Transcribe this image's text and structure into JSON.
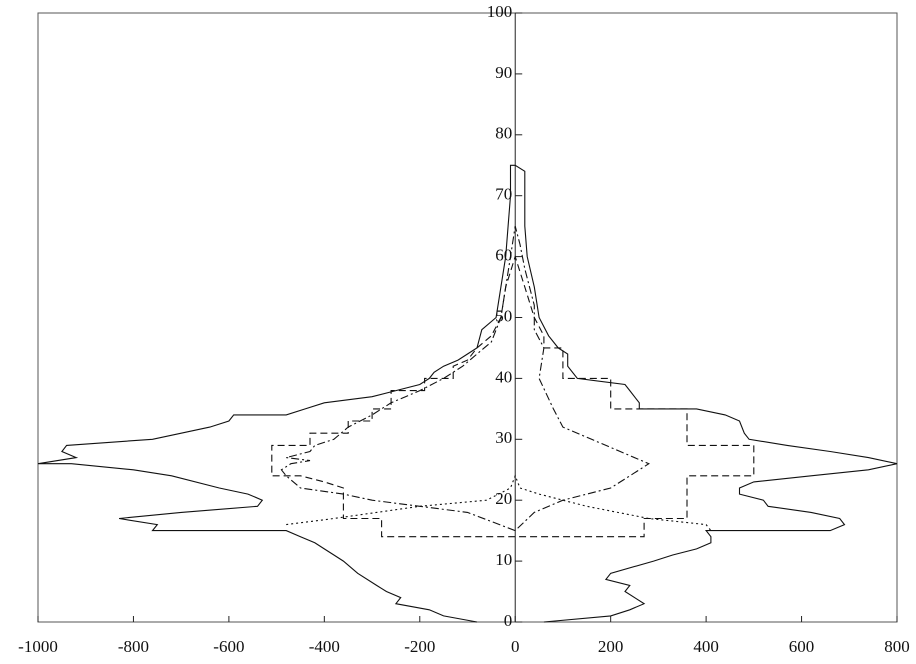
{
  "chart_data": {
    "type": "line",
    "xlim": [
      -1000,
      800
    ],
    "ylim": [
      0,
      100
    ],
    "xticks": [
      -1000,
      -800,
      -600,
      -400,
      -200,
      0,
      200,
      400,
      600,
      800
    ],
    "yticks": [
      0,
      10,
      20,
      30,
      40,
      50,
      60,
      70,
      80,
      90,
      100
    ],
    "series": [
      {
        "color": "#111111",
        "dash": "solid",
        "x": [
          -80,
          -150,
          -180,
          -250,
          -240,
          -270,
          -290,
          -330,
          -360,
          -380,
          -400,
          -420,
          -450,
          -480,
          -760,
          -750,
          -830,
          -700,
          -540,
          -530,
          -560,
          -620,
          -720,
          -800,
          -930,
          -1000,
          -920,
          -950,
          -940,
          -760,
          -700,
          -640,
          -600,
          -590,
          -480,
          -440,
          -400,
          -300,
          -250,
          -200,
          -180,
          -170,
          -150,
          -120,
          -100,
          -80,
          -70,
          -40,
          -30,
          -20,
          -15,
          -10,
          -10,
          0,
          20,
          20,
          25,
          40,
          50,
          70,
          90,
          110,
          110,
          130,
          230,
          240,
          250,
          260,
          260,
          380,
          440,
          470,
          480,
          490,
          570,
          660,
          740,
          800,
          740,
          620,
          500,
          470,
          470,
          520,
          530,
          620,
          680,
          690,
          660,
          400,
          410,
          410,
          380,
          330,
          290,
          200,
          190,
          240,
          230,
          270,
          240,
          200,
          60
        ],
        "values": [
          0,
          1,
          2,
          3,
          4,
          5,
          6,
          8,
          10,
          11,
          12,
          13,
          14,
          15,
          15,
          16,
          17,
          18,
          19,
          20,
          21,
          22,
          24,
          25,
          26,
          26,
          27,
          28,
          29,
          30,
          31,
          32,
          33,
          34,
          34,
          35,
          36,
          37,
          38,
          39,
          40,
          41,
          42,
          43,
          44,
          45,
          48,
          50,
          55,
          60,
          65,
          70,
          75,
          75,
          74,
          65,
          60,
          55,
          50,
          47,
          45,
          44,
          42,
          40,
          39,
          38,
          37,
          36,
          35,
          35,
          34,
          33,
          31,
          30,
          29,
          28,
          27,
          26,
          25,
          24,
          23,
          22,
          21,
          20,
          19,
          18,
          17,
          16,
          15,
          15,
          14,
          13,
          12,
          11,
          10,
          8,
          7,
          6,
          5,
          3,
          2,
          1,
          0
        ]
      },
      {
        "color": "#111111",
        "dash": "dashed",
        "x": [
          0,
          -280,
          -280,
          -360,
          -360,
          -360,
          -400,
          -450,
          -510,
          -510,
          -430,
          -430,
          -350,
          -350,
          -300,
          -300,
          -260,
          -260,
          -190,
          -190,
          -130,
          -130,
          -100,
          -80,
          -50,
          -30,
          -20,
          0,
          20,
          40,
          60,
          60,
          100,
          100,
          200,
          200,
          360,
          360,
          500,
          500,
          360,
          360,
          270,
          270,
          0
        ],
        "values": [
          14,
          14,
          17,
          17,
          21,
          22,
          23,
          24,
          24,
          29,
          29,
          31,
          31,
          33,
          33,
          35,
          35,
          38,
          38,
          40,
          40,
          42,
          43,
          45,
          47,
          50,
          55,
          60,
          55,
          50,
          47,
          45,
          45,
          40,
          40,
          35,
          35,
          29,
          29,
          24,
          24,
          17,
          17,
          14,
          14
        ]
      },
      {
        "color": "#111111",
        "dash": "dashdot",
        "x": [
          0,
          -100,
          -200,
          -300,
          -360,
          -450,
          -480,
          -490,
          -470,
          -430,
          -480,
          -430,
          -420,
          -380,
          -350,
          -300,
          -260,
          -230,
          -200,
          -150,
          -110,
          -80,
          -50,
          -30,
          -20,
          -10,
          0,
          10,
          20,
          30,
          40,
          40,
          60,
          50,
          80,
          100,
          160,
          220,
          280,
          260,
          200,
          100,
          40,
          0
        ],
        "values": [
          15,
          18,
          19,
          20,
          21,
          22,
          24,
          25,
          26,
          26.5,
          27,
          28,
          29,
          30,
          32,
          34,
          36,
          37,
          38,
          40,
          42,
          44,
          46,
          50,
          55,
          60,
          65,
          62,
          58,
          55,
          52,
          48,
          45,
          40,
          35,
          32,
          30,
          28,
          26,
          25,
          22,
          20,
          18,
          15
        ]
      },
      {
        "color": "#111111",
        "dash": "dotted",
        "x": [
          -480,
          -380,
          -200,
          -60,
          -10,
          0,
          10,
          50,
          150,
          280,
          400,
          410
        ],
        "values": [
          16,
          17,
          19,
          20,
          22,
          24,
          22,
          21,
          19,
          17,
          16,
          15
        ]
      }
    ]
  }
}
